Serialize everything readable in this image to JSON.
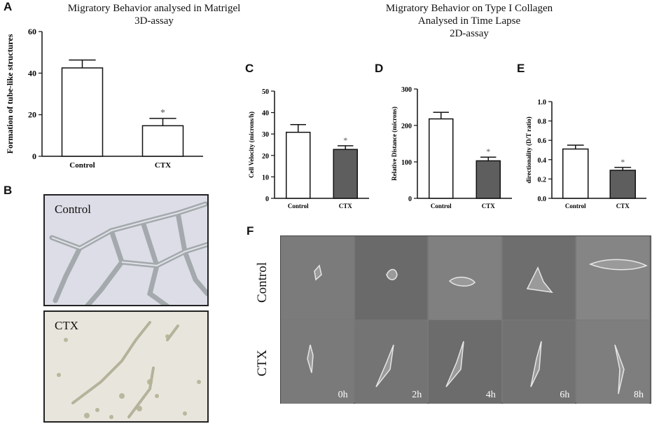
{
  "panels": {
    "a": {
      "letter": "A",
      "heading_line1": "Migratory Behavior analysed in Matrigel",
      "heading_line2": "3D-assay"
    },
    "b": {
      "letter": "B",
      "photo_control_label": "Control",
      "photo_ctx_label": "CTX"
    },
    "c": {
      "letter": "C"
    },
    "d": {
      "letter": "D"
    },
    "e": {
      "letter": "E"
    },
    "f": {
      "letter": "F",
      "row_control": "Control",
      "row_ctx": "CTX",
      "timepoints": [
        "0h",
        "2h",
        "4h",
        "6h",
        "8h"
      ]
    },
    "collagen_heading": {
      "line1": "Migratory Behavior on Type I Collagen",
      "line2": "Analysed in Time Lapse",
      "line3": "2D-assay"
    }
  },
  "chart_data": [
    {
      "id": "A",
      "type": "bar",
      "categories": [
        "Control",
        "CTX"
      ],
      "values": [
        42.5,
        14.7
      ],
      "errors": [
        3.8,
        3.5
      ],
      "ylabel": "Formation of tube-like structures",
      "ylim": [
        0,
        60
      ],
      "yticks": [
        0,
        20,
        40,
        60
      ],
      "significance": [
        "",
        "*"
      ],
      "bar_colors": [
        "#ffffff",
        "#ffffff"
      ],
      "grid": false
    },
    {
      "id": "C",
      "type": "bar",
      "categories": [
        "Control",
        "CTX"
      ],
      "values": [
        30.8,
        22.8
      ],
      "errors": [
        3.6,
        1.7
      ],
      "ylabel": "Cell Velocity (microns/h)",
      "ylim": [
        0,
        50
      ],
      "yticks": [
        0,
        10,
        20,
        30,
        40,
        50
      ],
      "significance": [
        "",
        "*"
      ],
      "bar_colors": [
        "#ffffff",
        "#5e5e5e"
      ],
      "grid": false
    },
    {
      "id": "D",
      "type": "bar",
      "categories": [
        "Control",
        "CTX"
      ],
      "values": [
        218,
        103
      ],
      "errors": [
        18,
        10
      ],
      "ylabel": "Relative Distance (microns)",
      "ylim": [
        0,
        300
      ],
      "yticks": [
        0,
        100,
        200,
        300
      ],
      "significance": [
        "",
        "*"
      ],
      "bar_colors": [
        "#ffffff",
        "#5e5e5e"
      ],
      "grid": false
    },
    {
      "id": "E",
      "type": "bar",
      "categories": [
        "Control",
        "CTX"
      ],
      "values": [
        0.51,
        0.29
      ],
      "errors": [
        0.04,
        0.03
      ],
      "ylabel": "directionality (D/T ratio)",
      "ylim": [
        0,
        1.0
      ],
      "yticks": [
        0.0,
        0.2,
        0.4,
        0.6,
        0.8,
        1.0
      ],
      "significance": [
        "",
        "*"
      ],
      "bar_colors": [
        "#ffffff",
        "#5e5e5e"
      ],
      "grid": false
    }
  ]
}
